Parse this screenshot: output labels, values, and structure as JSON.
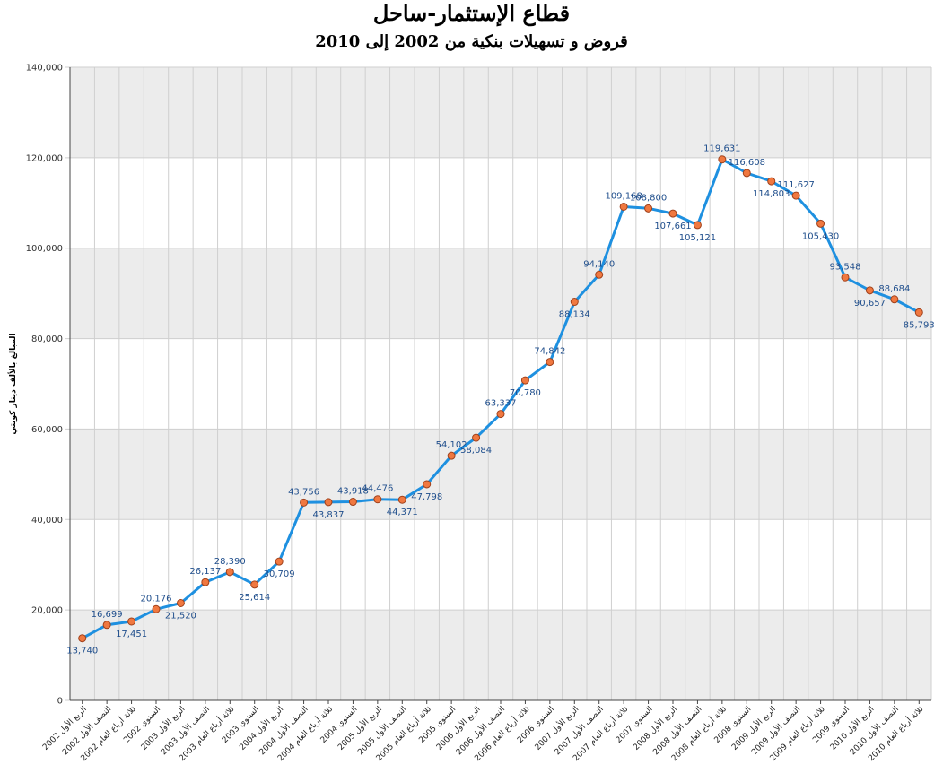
{
  "chart_data": {
    "type": "line",
    "title": "قطاع الإستثمار-ساحل",
    "subtitle": "قروض و تسهيلات بنكية من 2002 إلى 2010",
    "ylabel": "المبالغ بالألف دينار كويتي",
    "xlabel": "",
    "ylim": [
      0,
      140000
    ],
    "yticks": [
      "0",
      "20,000",
      "40,000",
      "60,000",
      "80,000",
      "100,000",
      "120,000",
      "140,000"
    ],
    "grid": "horizontal bands and vertical lines",
    "colors": {
      "line": "#1e90e0",
      "marker": "#f07840",
      "marker_edge": "#a0401a",
      "band": "#ececec",
      "label": "#1f4e8c"
    },
    "categories": [
      "الربع الأول 2002",
      "النصف الأول 2002",
      "ثلاثة أرباع العام 2002",
      "السنوي 2002",
      "الربع الأول 2003",
      "النصف الأول 2003",
      "ثلاثة أرباع العام 2003",
      "السنوي 2003",
      "الربع الأول 2004",
      "النصف الأول 2004",
      "ثلاثة أرباع العام 2004",
      "السنوي 2004",
      "الربع الأول 2005",
      "النصف الأول 2005",
      "ثلاثة أرباع العام 2005",
      "السنوي 2005",
      "الربع الأول 2006",
      "النصف الأول 2006",
      "ثلاثة أرباع العام 2006",
      "السنوي 2006",
      "الربع الأول 2007",
      "النصف الأول 2007",
      "ثلاثة أرباع العام 2007",
      "السنوي 2007",
      "الربع الأول 2008",
      "النصف الأول 2008",
      "ثلاثة أرباع العام 2008",
      "السنوي 2008",
      "الربع الأول 2009",
      "النصف الأول 2009",
      "ثلاثة أرباع العام 2009",
      "السنوي 2009",
      "الربع الأول 2010",
      "النصف الأول 2010",
      "ثلاثة أرباع العام 2010"
    ],
    "values": [
      13740,
      16699,
      17451,
      20176,
      21520,
      26137,
      28390,
      25614,
      30709,
      43756,
      43837,
      43918,
      44476,
      44371,
      47798,
      54102,
      58084,
      63337,
      70780,
      74842,
      88134,
      94140,
      109168,
      108800,
      107661,
      105121,
      119631,
      116608,
      114803,
      111627,
      105430,
      93548,
      90657,
      88684,
      85793
    ],
    "labels": [
      "13,740",
      "16,699",
      "17,451",
      "20,176",
      "21,520",
      "26,137",
      "28,390",
      "25,614",
      "30,709",
      "43,756",
      "43,837",
      "43,918",
      "44,476",
      "44,371",
      "47,798",
      "54,102",
      "58,084",
      "63,337",
      "70,780",
      "74,842",
      "88,134",
      "94,140",
      "109,168",
      "108,800",
      "107,661",
      "105,121",
      "119,631",
      "116,608",
      "114,803",
      "111,627",
      "105,430",
      "93,548",
      "90,657",
      "88,684",
      "85,793"
    ]
  }
}
